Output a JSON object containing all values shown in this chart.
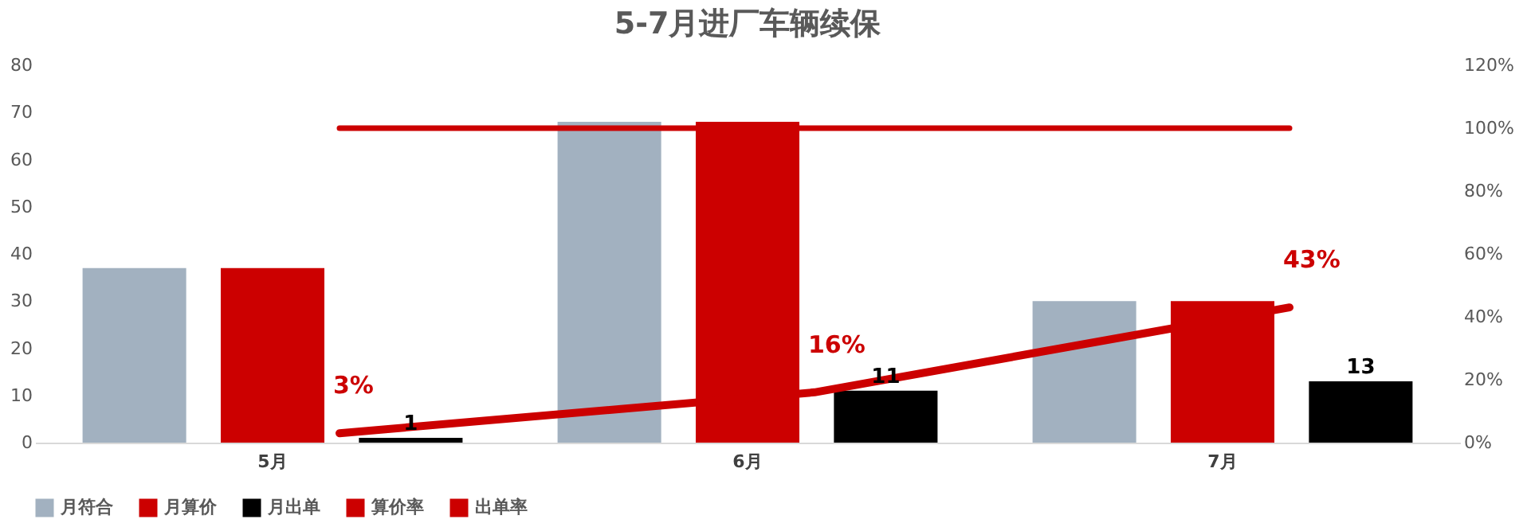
{
  "chart_data": {
    "type": "bar",
    "title": "5-7月进厂车辆续保",
    "categories": [
      "5月",
      "6月",
      "7月"
    ],
    "series": [
      {
        "name": "月符合",
        "color": "#a2b1c0",
        "values": [
          37,
          68,
          30
        ]
      },
      {
        "name": "月算价",
        "color": "#cc0000",
        "values": [
          37,
          68,
          30
        ]
      },
      {
        "name": "月出单",
        "color": "#000000",
        "values": [
          1,
          11,
          13
        ],
        "value_labels": [
          "1",
          "11",
          "13"
        ]
      },
      {
        "name": "算价率",
        "type": "line",
        "axis": "y2",
        "color": "#cc0000",
        "values": [
          3,
          16,
          43
        ],
        "value_labels": [
          "3%",
          "16%",
          "43%"
        ]
      },
      {
        "name": "出单率",
        "type": "line",
        "axis": "y2",
        "color": "#cc0000",
        "values": [
          100,
          100,
          100
        ]
      }
    ],
    "ylim": [
      0,
      80
    ],
    "yticks": [
      0,
      10,
      20,
      30,
      40,
      50,
      60,
      70,
      80
    ],
    "y2lim": [
      0,
      120
    ],
    "y2ticks": [
      {
        "value": 0,
        "label": "0%"
      },
      {
        "value": 20,
        "label": "20%"
      },
      {
        "value": 40,
        "label": "40%"
      },
      {
        "value": 60,
        "label": "60%"
      },
      {
        "value": 80,
        "label": "80%"
      },
      {
        "value": 100,
        "label": "100%"
      },
      {
        "value": 120,
        "label": "120%"
      }
    ],
    "legend": "bottom"
  }
}
